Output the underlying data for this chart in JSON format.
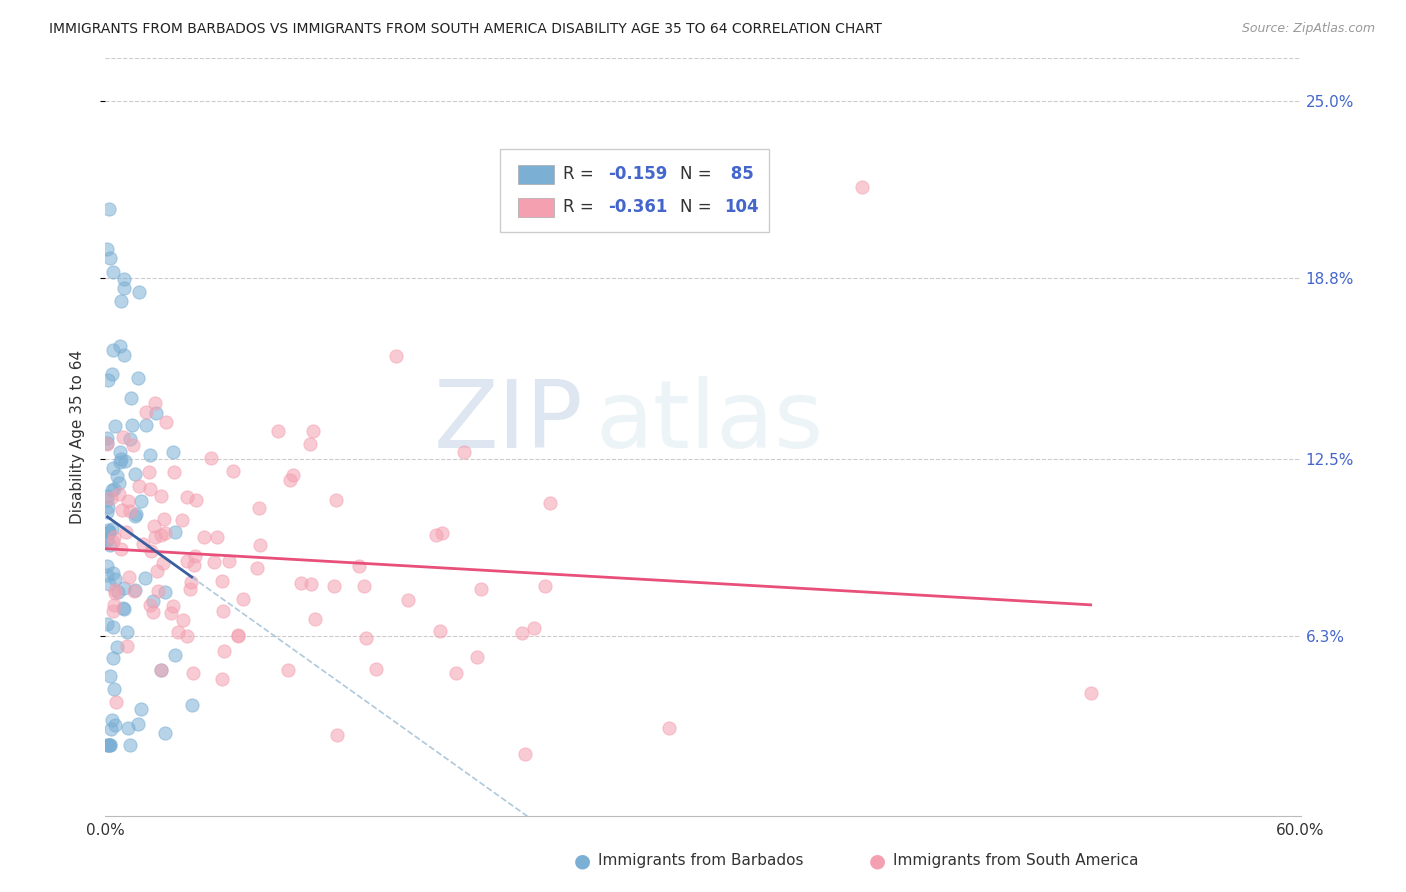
{
  "title": "IMMIGRANTS FROM BARBADOS VS IMMIGRANTS FROM SOUTH AMERICA DISABILITY AGE 35 TO 64 CORRELATION CHART",
  "source": "Source: ZipAtlas.com",
  "ylabel": "Disability Age 35 to 64",
  "xlabel_barbados": "Immigrants from Barbados",
  "xlabel_south_america": "Immigrants from South America",
  "xlim": [
    0.0,
    0.6
  ],
  "ylim": [
    0.0,
    0.265
  ],
  "xtick_positions": [
    0.0,
    0.6
  ],
  "xtick_labels": [
    "0.0%",
    "60.0%"
  ],
  "ytick_values": [
    0.063,
    0.125,
    0.188,
    0.25
  ],
  "ytick_labels": [
    "6.3%",
    "12.5%",
    "18.8%",
    "25.0%"
  ],
  "r_barbados": -0.159,
  "n_barbados": 85,
  "r_south_america": -0.361,
  "n_south_america": 104,
  "color_barbados": "#7BAFD4",
  "color_south_america": "#F4A0B0",
  "trendline_barbados": "#3A5FA0",
  "trendline_south_america": "#E8507A",
  "trendline_dash_color": "#9ABBD4",
  "grid_color": "#CCCCCC",
  "background_color": "#FFFFFF",
  "watermark_zip": "ZIP",
  "watermark_atlas": "atlas",
  "tick_color_right": "#4466CC"
}
